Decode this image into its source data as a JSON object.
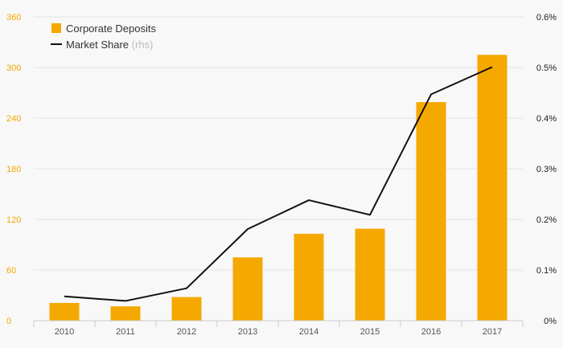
{
  "chart_data": {
    "type": "bar",
    "categories": [
      "2010",
      "2011",
      "2012",
      "2013",
      "2014",
      "2015",
      "2016",
      "2017"
    ],
    "series": [
      {
        "name": "Corporate Deposits",
        "type": "bar",
        "axis": "left",
        "color": "#f5a800",
        "values": [
          21,
          17,
          28,
          75,
          103,
          109,
          259,
          315
        ]
      },
      {
        "name": "Market Share",
        "name_suffix": "(rhs)",
        "type": "line",
        "axis": "right",
        "color": "#111111",
        "values": [
          0.048,
          0.039,
          0.064,
          0.181,
          0.238,
          0.209,
          0.447,
          0.501
        ]
      }
    ],
    "y_left": {
      "min": 0,
      "max": 360,
      "ticks": [
        0,
        60,
        120,
        180,
        240,
        300,
        360
      ],
      "tick_labels": [
        "0",
        "60",
        "120",
        "180",
        "240",
        "300",
        "360"
      ]
    },
    "y_right": {
      "min": 0,
      "max": 0.6,
      "ticks": [
        0,
        0.1,
        0.2,
        0.3,
        0.4,
        0.5,
        0.6
      ],
      "tick_labels": [
        "0%",
        "0.1%",
        "0.2%",
        "0.3%",
        "0.4%",
        "0.5%",
        "0.6%"
      ]
    },
    "grid": true,
    "legend_position": "top-left",
    "title": "",
    "xlabel": "",
    "ylabel": ""
  }
}
